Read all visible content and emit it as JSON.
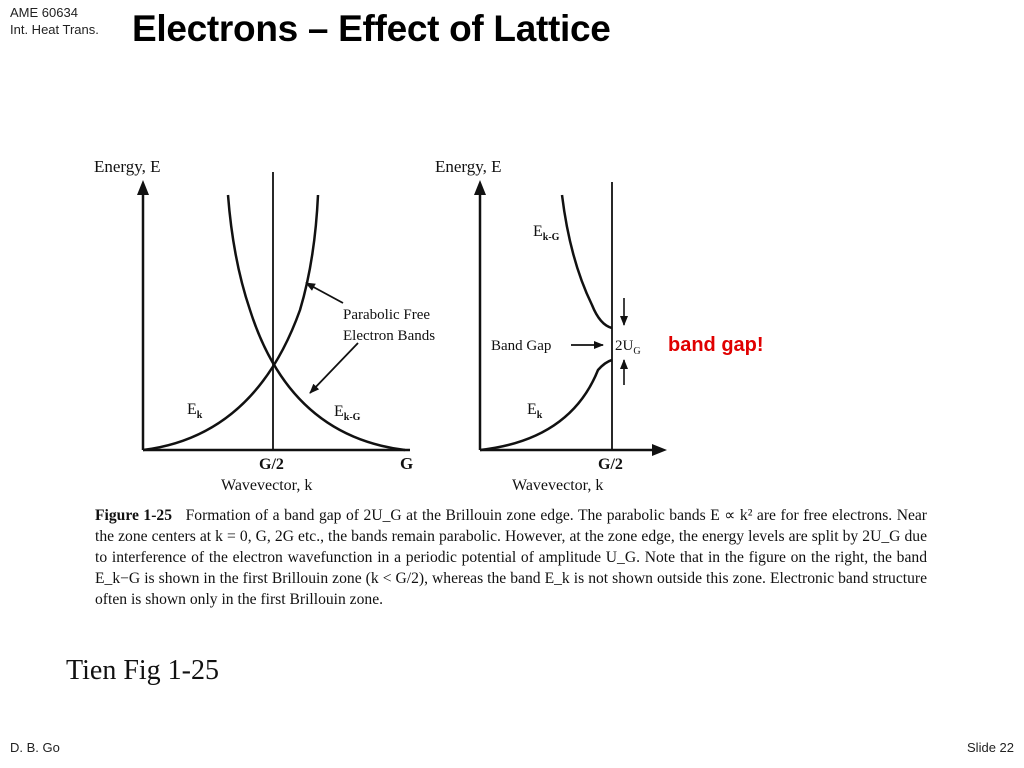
{
  "header": {
    "course_code": "AME 60634",
    "course_name": "Int. Heat Trans.",
    "title": "Electrons – Effect of Lattice"
  },
  "figure": {
    "left_panel": {
      "y_axis_label": "Energy, E",
      "annotation": "Parabolic Free\nElectron Bands",
      "annotation_line1": "Parabolic Free",
      "annotation_line2": "Electron Bands",
      "curve_label_ek": "E",
      "curve_label_ek_sub": "k",
      "curve_label_ekg": "E",
      "curve_label_ekg_sub": "k-G",
      "tick_label_half": "G/2",
      "tick_label_g": "G",
      "x_axis_label": "Wavevector, k"
    },
    "right_panel": {
      "y_axis_label": "Energy, E",
      "curve_label_ekg": "E",
      "curve_label_ekg_sub": "k-G",
      "curve_label_ek": "E",
      "curve_label_ek_sub": "k",
      "band_gap_label": "Band Gap",
      "gap_value": "2U",
      "gap_value_sub": "G",
      "tick_label_half": "G/2",
      "x_axis_label": "Wavevector, k"
    },
    "caption": {
      "label": "Figure 1-25",
      "text": "Formation of a band gap of 2U_G at the Brillouin zone edge. The parabolic bands E ∝ k² are for free electrons. Near the zone centers at k = 0, G, 2G etc., the bands remain parabolic. However, at the zone edge, the energy levels are split by 2U_G due to interference of the electron wavefunction in a periodic potential of amplitude U_G. Note that in the figure on the right, the band E_k−G is shown in the first Brillouin zone (k < G/2), whereas the band E_k is not shown outside this zone. Electronic band structure often is shown only in the first Brillouin zone."
    },
    "source": "Tien Fig 1-25"
  },
  "annotation": "band gap!",
  "footer": {
    "author": "D. B. Go",
    "slide": "Slide 22"
  },
  "colors": {
    "annotation": "#e00000",
    "text": "#000000"
  }
}
